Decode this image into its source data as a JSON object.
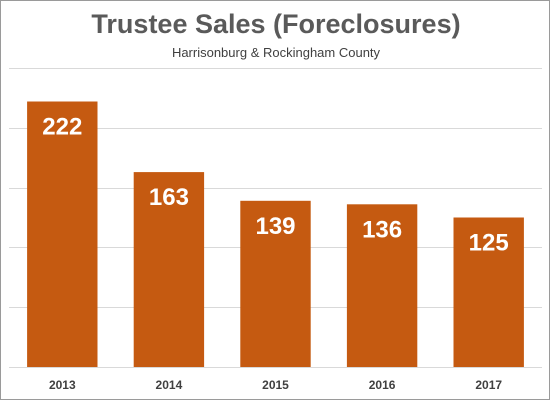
{
  "chart_data": {
    "type": "bar",
    "title": "Trustee Sales (Foreclosures)",
    "subtitle": "Harrisonburg & Rockingham County",
    "categories": [
      "2013",
      "2014",
      "2015",
      "2016",
      "2017"
    ],
    "values": [
      222,
      163,
      139,
      136,
      125
    ],
    "xlabel": "",
    "ylabel": "",
    "ylim": [
      0,
      250
    ],
    "grid": true,
    "y_tick_labels_shown": false,
    "data_labels": "inside-top",
    "bar_color": "#C55A11",
    "grid_color": "#d9d9d9"
  }
}
